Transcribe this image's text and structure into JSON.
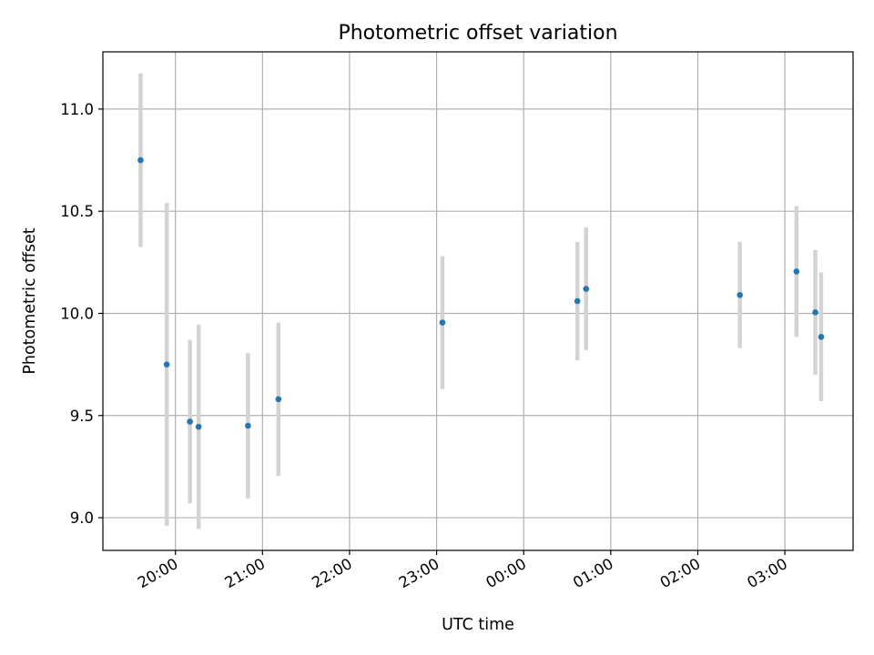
{
  "chart_data": {
    "type": "scatter",
    "title": "Photometric offset variation",
    "xlabel": "UTC time",
    "ylabel": "Photometric offset",
    "x_ticks": [
      "20:00",
      "21:00",
      "22:00",
      "23:00",
      "00:00",
      "01:00",
      "02:00",
      "03:00"
    ],
    "y_ticks": [
      "9.0",
      "9.5",
      "10.0",
      "10.5",
      "11.0"
    ],
    "xlim_utc": [
      "19:10",
      "03:47"
    ],
    "ylim": [
      8.84,
      11.28
    ],
    "grid": true,
    "errorbar_color": "#d3d3d3",
    "point_color": "#1f77b4",
    "points": [
      {
        "time": "19:36",
        "value": 10.75,
        "error": 0.425
      },
      {
        "time": "19:54",
        "value": 9.75,
        "error": 0.79
      },
      {
        "time": "20:10",
        "value": 9.47,
        "error": 0.4
      },
      {
        "time": "20:16",
        "value": 9.445,
        "error": 0.5
      },
      {
        "time": "20:50",
        "value": 9.45,
        "error": 0.355
      },
      {
        "time": "21:11",
        "value": 9.58,
        "error": 0.375
      },
      {
        "time": "23:04",
        "value": 9.955,
        "error": 0.325
      },
      {
        "time": "00:37",
        "value": 10.06,
        "error": 0.29
      },
      {
        "time": "00:43",
        "value": 10.12,
        "error": 0.3
      },
      {
        "time": "02:29",
        "value": 10.09,
        "error": 0.26
      },
      {
        "time": "03:08",
        "value": 10.205,
        "error": 0.32
      },
      {
        "time": "03:21",
        "value": 10.005,
        "error": 0.305
      },
      {
        "time": "03:25",
        "value": 9.885,
        "error": 0.315
      }
    ]
  }
}
